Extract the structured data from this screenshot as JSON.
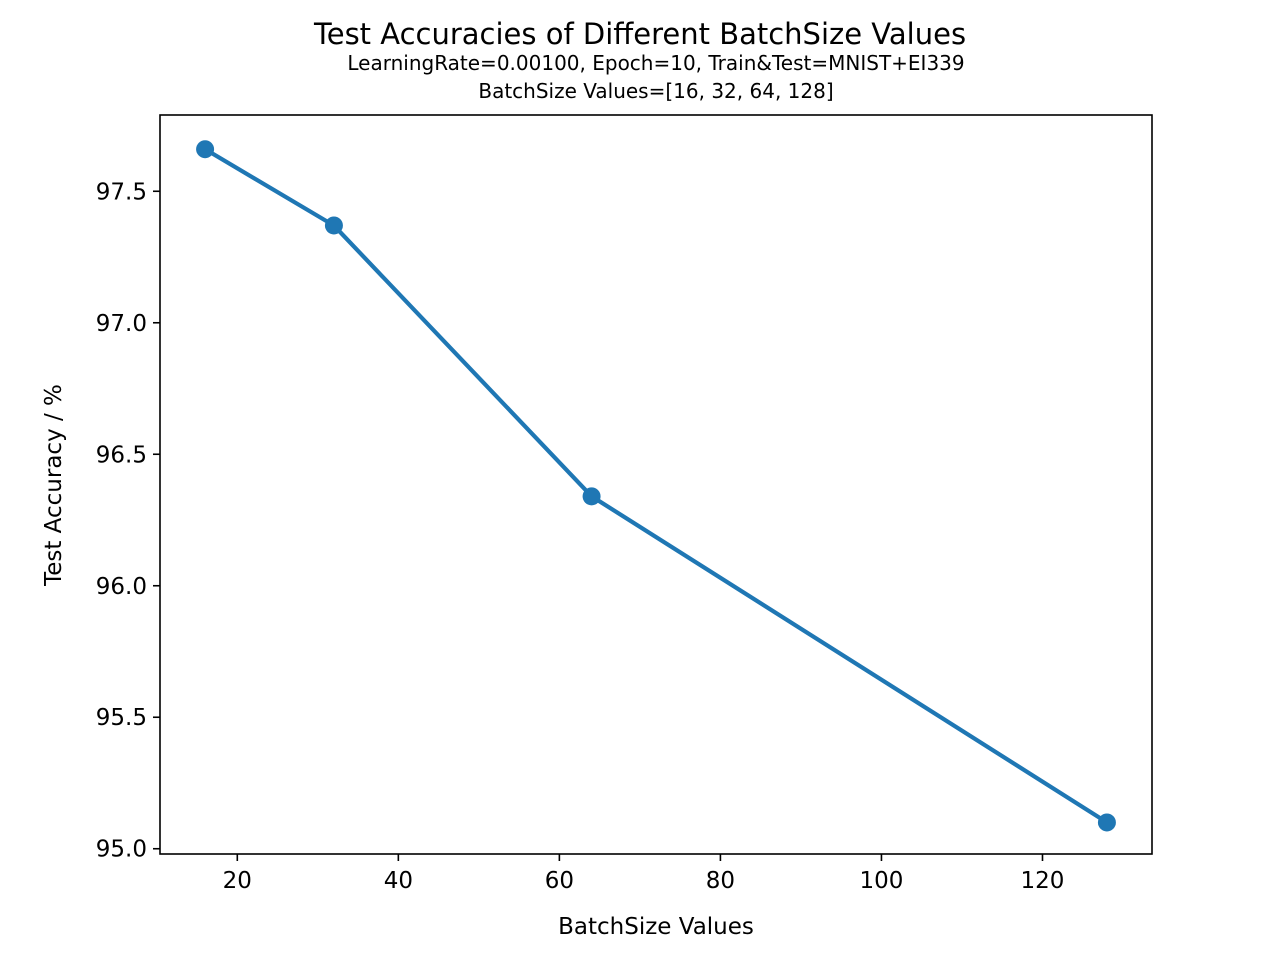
{
  "chart_data": {
    "type": "line",
    "title": "Test Accuracies of Different BatchSize Values",
    "subtitle_lines": [
      "LearningRate=0.00100, Epoch=10, Train&Test=MNIST+EI339",
      "BatchSize Values=[16, 32, 64, 128]"
    ],
    "xlabel": "BatchSize Values",
    "ylabel": "Test Accuracy / %",
    "x": [
      16,
      32,
      64,
      128
    ],
    "series": [
      {
        "values": [
          97.66,
          97.37,
          96.34,
          95.1
        ],
        "color": "#1f77b4",
        "marker": "circle"
      }
    ],
    "xlim": [
      10.4,
      133.6
    ],
    "ylim": [
      94.98,
      97.79
    ],
    "xticks": [
      20,
      40,
      60,
      80,
      100,
      120
    ],
    "xtick_labels": [
      "20",
      "40",
      "60",
      "80",
      "100",
      "120"
    ],
    "yticks": [
      95.0,
      95.5,
      96.0,
      96.5,
      97.0,
      97.5
    ],
    "ytick_labels": [
      "95.0",
      "95.5",
      "96.0",
      "96.5",
      "97.0",
      "97.5"
    ],
    "grid": false,
    "legend": false
  }
}
